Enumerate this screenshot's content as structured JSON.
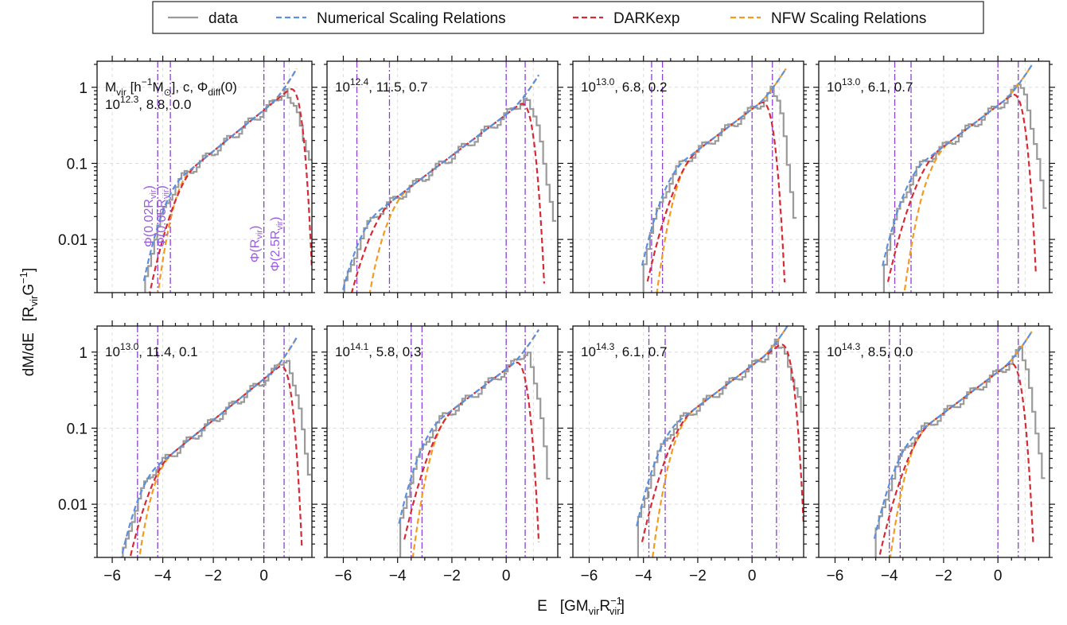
{
  "legend": [
    {
      "label": "data",
      "color": "#9a9a9a",
      "dash": "solid"
    },
    {
      "label": "Numerical Scaling Relations",
      "color": "#5b8fe0",
      "dash": "dashed"
    },
    {
      "label": "DARKexp",
      "color": "#d62a35",
      "dash": "dashed"
    },
    {
      "label": "NFW Scaling Relations",
      "color": "#f39a20",
      "dash": "dashed"
    }
  ],
  "colors": {
    "data": "#9a9a9a",
    "numerical": "#5b8fe0",
    "darkexp": "#d62a35",
    "nfw": "#f39a20",
    "vline": "#8a3fd8",
    "vline_label": "#9a5ce0",
    "grid": "#dddddd"
  },
  "axes": {
    "xlabel_prefix": "E",
    "xlabel_units": "[GM",
    "xlabel_units_sub1": "vir",
    "xlabel_units_mid": "R",
    "xlabel_units_sup": "−1",
    "xlabel_units_sub2": "vir",
    "xlabel_units_end": "]",
    "ylabel_prefix": "dM/dE",
    "ylabel_units": "[R",
    "ylabel_units_sub": "vir",
    "ylabel_units_mid": "G",
    "ylabel_units_sup": "−1",
    "ylabel_units_end": "]",
    "xticks": [
      -6,
      -4,
      -2,
      0
    ],
    "xtick_labels": [
      "−6",
      "−4",
      "−2",
      "0"
    ],
    "yticks": [
      0.01,
      0.1,
      1
    ],
    "ytick_labels": [
      "0.01",
      "0.1",
      "1"
    ],
    "xlim": [
      -6.6,
      1.9
    ],
    "ylim": [
      0.002,
      2.2
    ],
    "yscale": "log"
  },
  "header_text": {
    "line1_M": "M",
    "line1_Msub": "vir",
    "line1_units": " [h",
    "line1_units_sup": "−1",
    "line1_units_M": "M",
    "line1_units_Msub": "⊙",
    "line1_rest": "], c, Φ",
    "line1_phisub": "diff",
    "line1_end": "(0)"
  },
  "vline_labels": [
    {
      "prefix": "Φ(0.02R",
      "sub": "vir",
      "suffix": ")"
    },
    {
      "prefix": "Φ(0.05R",
      "sub": "vir",
      "suffix": ")"
    },
    {
      "prefix": "Φ(R",
      "sub": "vir",
      "suffix": ")"
    },
    {
      "prefix": "Φ(2.5R",
      "sub": "vir",
      "suffix": ")"
    }
  ],
  "chart_data": [
    {
      "type": "line",
      "mantissa": "10",
      "exponent": "12.3",
      "params": ", 8.8, 0.0",
      "vlines": [
        -4.2,
        -3.7,
        0.0,
        0.8
      ],
      "emin": -4.7,
      "emax": 1.9,
      "nfw_start": -4.6,
      "peak": 0.85
    },
    {
      "type": "line",
      "mantissa": "10",
      "exponent": "12.4",
      "params": ", 11.5, 0.7",
      "vlines": [
        -5.5,
        -4.3,
        0.0,
        0.7
      ],
      "emin": -6.2,
      "emax": 1.4,
      "nfw_start": -5.4,
      "peak": 0.7
    },
    {
      "type": "line",
      "mantissa": "10",
      "exponent": "13.0",
      "params": ", 6.8, 0.2",
      "vlines": [
        -3.7,
        -3.3,
        0.0,
        0.75
      ],
      "emin": -4.0,
      "emax": 1.2,
      "nfw_start": -3.8,
      "peak": 0.85
    },
    {
      "type": "line",
      "mantissa": "10",
      "exponent": "13.0",
      "params": ", 6.1, 0.7",
      "vlines": [
        -3.8,
        -3.2,
        0.0,
        0.75
      ],
      "emin": -4.2,
      "emax": 1.4,
      "nfw_start": -3.6,
      "peak": 0.95
    },
    {
      "type": "line",
      "mantissa": "10",
      "exponent": "13.0",
      "params": ", 11.4, 0.1",
      "vlines": [
        -5.0,
        -4.2,
        0.0,
        0.8
      ],
      "emin": -5.7,
      "emax": 1.5,
      "nfw_start": -5.4,
      "peak": 0.75
    },
    {
      "type": "line",
      "mantissa": "10",
      "exponent": "14.1",
      "params": ", 5.8, 0.3",
      "vlines": [
        -3.5,
        -3.1,
        0.0,
        0.7
      ],
      "emin": -3.9,
      "emax": 1.2,
      "nfw_start": -3.7,
      "peak": 0.95
    },
    {
      "type": "line",
      "mantissa": "10",
      "exponent": "14.3",
      "params": ", 6.1, 0.7",
      "vlines": [
        -3.8,
        -3.2,
        0.0,
        0.9
      ],
      "emin": -4.2,
      "emax": 1.9,
      "nfw_start": -3.9,
      "peak": 1.2
    },
    {
      "type": "line",
      "mantissa": "10",
      "exponent": "14.3",
      "params": ", 8.5, 0.0",
      "vlines": [
        -4.0,
        -3.6,
        0.0,
        0.75
      ],
      "emin": -4.5,
      "emax": 1.3,
      "nfw_start": -4.3,
      "peak": 0.9
    }
  ]
}
